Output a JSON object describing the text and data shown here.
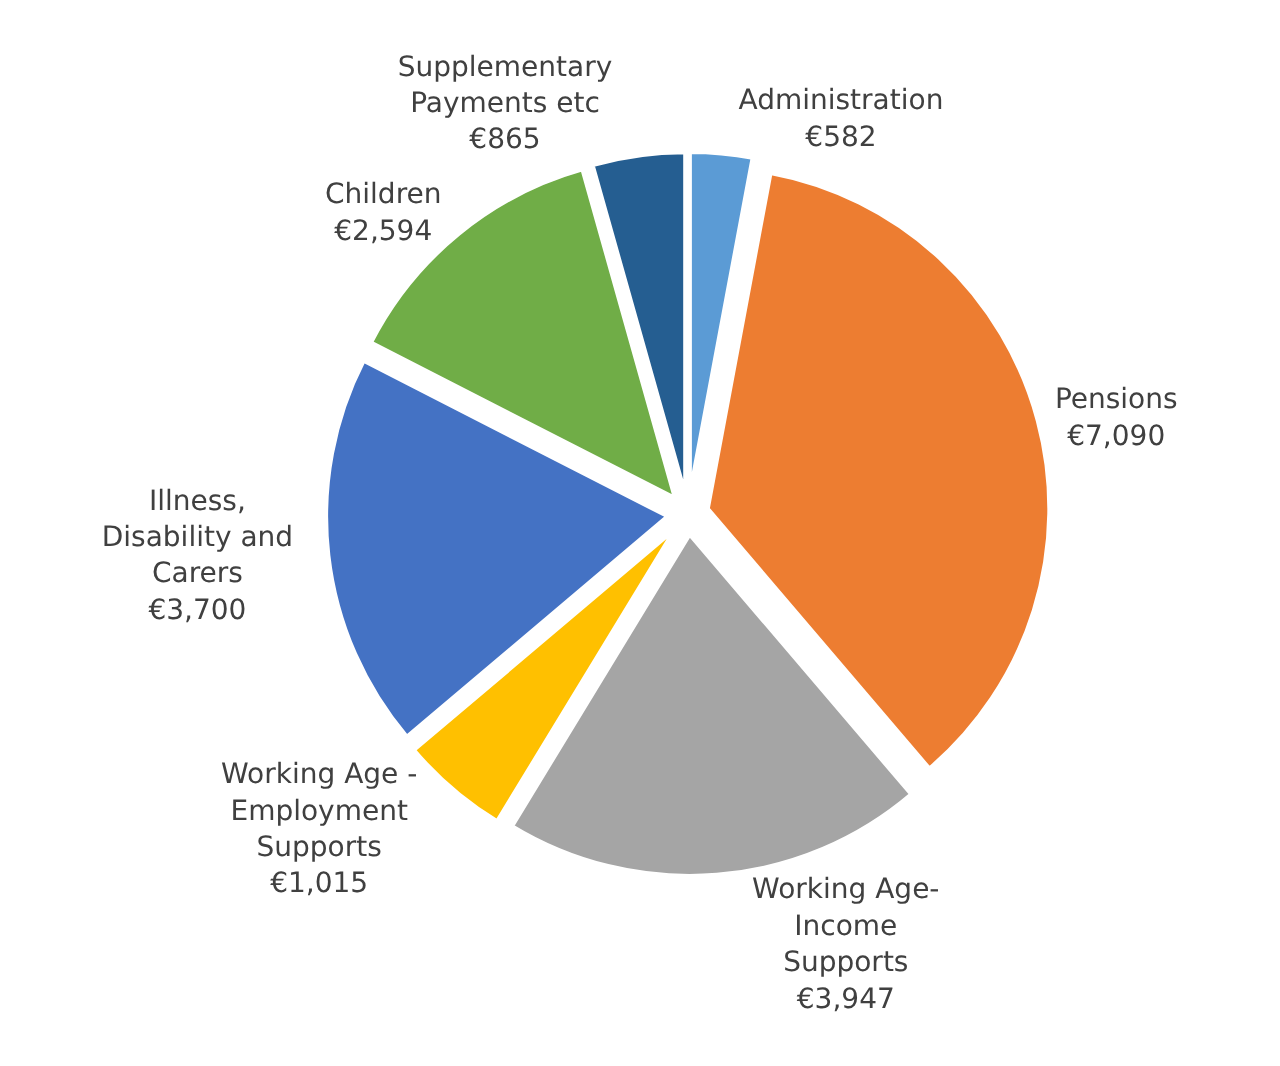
{
  "chart_data": {
    "type": "pie",
    "categories": [
      "Administration",
      "Pensions",
      "Working Age- Income Supports",
      "Working Age - Employment Supports",
      "Illness, Disability and Carers",
      "Children",
      "Supplementary Payments etc"
    ],
    "values": [
      582,
      7090,
      3947,
      1015,
      3700,
      2594,
      865
    ],
    "value_labels": [
      "€582",
      "€7,090",
      "€3,947",
      "€1,015",
      "€3,700",
      "€2,594",
      "€865"
    ],
    "colors": [
      "#5b9bd5",
      "#ed7d31",
      "#a5a5a5",
      "#ffc000",
      "#4472c4",
      "#70ad47",
      "#255e91"
    ],
    "legend": false
  }
}
